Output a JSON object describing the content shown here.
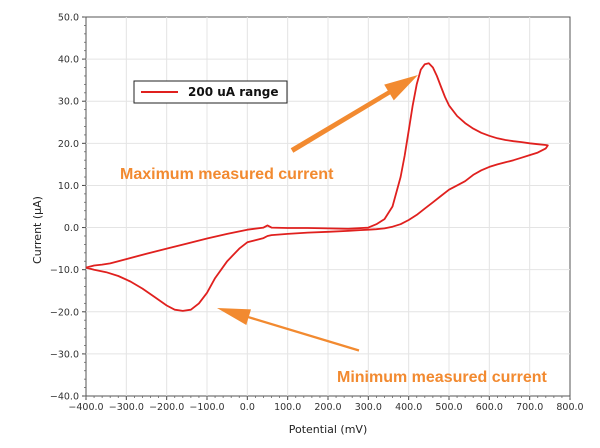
{
  "chart_data": {
    "type": "line",
    "title": "",
    "xlabel": "Potential (mV)",
    "ylabel": "Current (μA)",
    "xlim": [
      -400,
      800
    ],
    "ylim": [
      -40,
      50
    ],
    "xticks": [
      "−400.0",
      "−300.0",
      "−200.0",
      "−100.0",
      "0.0",
      "100.0",
      "200.0",
      "300.0",
      "400.0",
      "500.0",
      "600.0",
      "700.0",
      "800.0"
    ],
    "yticks": [
      "50.0",
      "40.0",
      "30.0",
      "20.0",
      "10.0",
      "0.0",
      "−10.0",
      "−20.0",
      "−30.0",
      "−40.0"
    ],
    "grid": true,
    "legend_position": "top-left",
    "series": [
      {
        "name": "200 uA range",
        "color": "#e0201e",
        "x": [
          -400,
          -380,
          -360,
          -340,
          -320,
          -300,
          -250,
          -200,
          -150,
          -100,
          -50,
          0,
          40,
          50,
          60,
          100,
          150,
          200,
          250,
          300,
          320,
          340,
          360,
          380,
          390,
          400,
          410,
          420,
          430,
          440,
          450,
          460,
          470,
          480,
          490,
          500,
          520,
          540,
          560,
          580,
          600,
          620,
          640,
          660,
          680,
          700,
          720,
          740,
          745,
          740,
          720,
          700,
          680,
          660,
          640,
          620,
          600,
          580,
          560,
          540,
          520,
          500,
          480,
          460,
          440,
          420,
          400,
          380,
          360,
          340,
          320,
          300,
          280,
          250,
          200,
          150,
          100,
          60,
          50,
          40,
          0,
          -20,
          -50,
          -80,
          -100,
          -120,
          -140,
          -160,
          -180,
          -200,
          -230,
          -260,
          -290,
          -320,
          -350,
          -380,
          -400
        ],
        "y": [
          -9.5,
          -9.0,
          -8.8,
          -8.5,
          -8.0,
          -7.5,
          -6.2,
          -5.0,
          -3.8,
          -2.6,
          -1.5,
          -0.5,
          0.0,
          0.5,
          0.0,
          -0.1,
          -0.1,
          -0.2,
          -0.3,
          0.0,
          0.8,
          2.0,
          5.0,
          12.0,
          17.0,
          23.0,
          29.0,
          34.0,
          37.5,
          38.8,
          39.0,
          38.0,
          36.0,
          33.5,
          31.0,
          29.0,
          26.5,
          24.8,
          23.5,
          22.5,
          21.8,
          21.2,
          20.8,
          20.5,
          20.3,
          20.0,
          19.8,
          19.6,
          19.5,
          18.8,
          17.8,
          17.2,
          16.6,
          16.0,
          15.5,
          15.0,
          14.4,
          13.6,
          12.5,
          11.0,
          10.0,
          9.0,
          7.5,
          6.0,
          4.5,
          3.0,
          1.8,
          0.8,
          0.2,
          -0.2,
          -0.4,
          -0.5,
          -0.6,
          -0.8,
          -1.0,
          -1.2,
          -1.5,
          -1.8,
          -2.0,
          -2.5,
          -3.5,
          -5.0,
          -8.0,
          -12.0,
          -15.5,
          -18.0,
          -19.5,
          -19.8,
          -19.5,
          -18.5,
          -16.5,
          -14.5,
          -12.8,
          -11.5,
          -10.6,
          -10.0,
          -9.5
        ]
      }
    ],
    "annotations": [
      {
        "text": "Maximum measured current",
        "color": "#f28a30"
      },
      {
        "text": "Minimum measured current",
        "color": "#f28a30"
      }
    ]
  }
}
